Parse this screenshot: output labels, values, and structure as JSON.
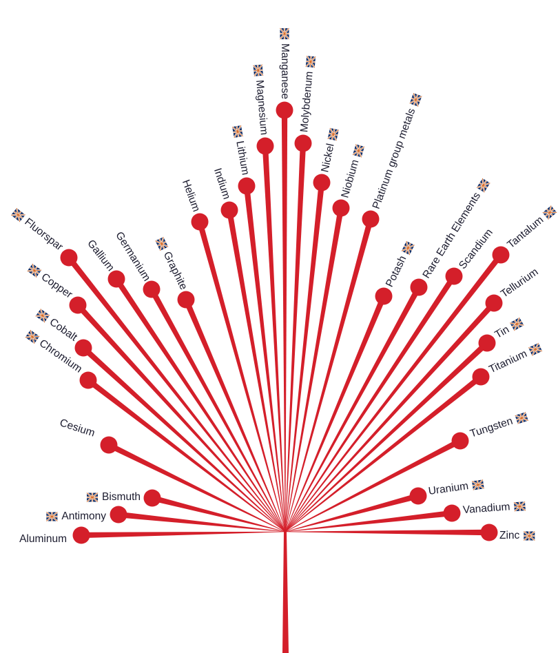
{
  "colors": {
    "branch": "#d41f2a",
    "text": "#1b1b2e",
    "flag_blue": "#0d2a63",
    "flag_red": "#d8702e"
  },
  "icons": {
    "flag": "flag-icon"
  },
  "minerals": [
    {
      "name": "Aluminum"
    },
    {
      "name": "Antimony"
    },
    {
      "name": "Bismuth"
    },
    {
      "name": "Cesium"
    },
    {
      "name": "Chromium"
    },
    {
      "name": "Cobalt"
    },
    {
      "name": "Copper"
    },
    {
      "name": "Fluorspar"
    },
    {
      "name": "Gallium"
    },
    {
      "name": "Germanium"
    },
    {
      "name": "Graphite"
    },
    {
      "name": "Helium"
    },
    {
      "name": "Indium"
    },
    {
      "name": "Lithium"
    },
    {
      "name": "Magnesium"
    },
    {
      "name": "Manganese"
    },
    {
      "name": "Molybdenum"
    },
    {
      "name": "Nickel"
    },
    {
      "name": "Niobium"
    },
    {
      "name": "Platinum group metals"
    },
    {
      "name": "Potash"
    },
    {
      "name": "Rare Earth Elements"
    },
    {
      "name": "Scandium"
    },
    {
      "name": "Tantalum"
    },
    {
      "name": "Tellurium"
    },
    {
      "name": "Tin"
    },
    {
      "name": "Titanium"
    },
    {
      "name": "Tungsten"
    },
    {
      "name": "Uranium"
    },
    {
      "name": "Vanadium"
    },
    {
      "name": "Zinc"
    }
  ]
}
